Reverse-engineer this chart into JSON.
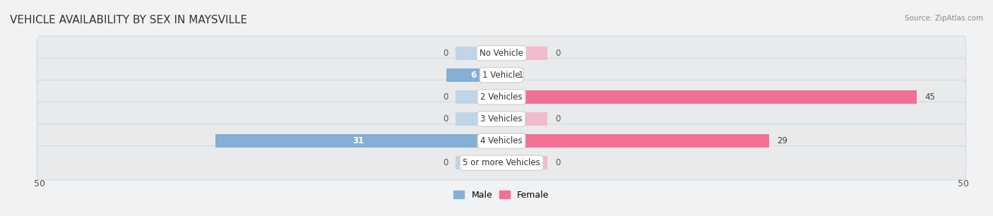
{
  "title": "VEHICLE AVAILABILITY BY SEX IN MAYSVILLE",
  "source": "Source: ZipAtlas.com",
  "categories": [
    "No Vehicle",
    "1 Vehicle",
    "2 Vehicles",
    "3 Vehicles",
    "4 Vehicles",
    "5 or more Vehicles"
  ],
  "male_values": [
    0,
    6,
    0,
    0,
    31,
    0
  ],
  "female_values": [
    0,
    1,
    45,
    0,
    29,
    0
  ],
  "male_color": "#85afd4",
  "male_color_light": "#b8d0e8",
  "female_color": "#f07096",
  "female_color_light": "#f5b0c4",
  "male_label": "Male",
  "female_label": "Female",
  "xlim": 50,
  "row_bg_color": "#e8eaec",
  "background_color": "#f0f2f4",
  "title_fontsize": 11,
  "axis_fontsize": 9,
  "label_fontsize": 8.5,
  "stub_size": 5
}
